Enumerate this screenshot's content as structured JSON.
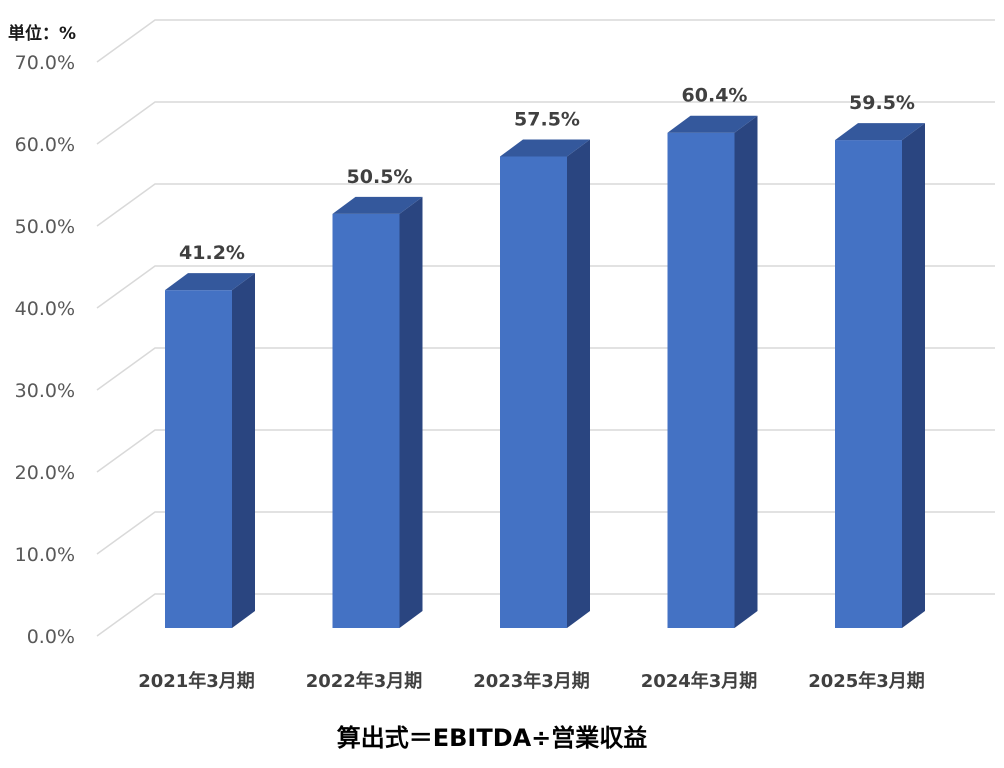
{
  "unit_label": "単位：%",
  "caption": "算出式＝EBITDA÷営業収益",
  "colors": {
    "bar_front": "#4472C4",
    "bar_side": "#2A4580",
    "bar_top": "#34589C",
    "grid": "#D9D9D9"
  },
  "chart_data": {
    "type": "bar",
    "style": "3d-column",
    "title": "",
    "xlabel": "",
    "ylabel": "",
    "categories": [
      "2021年3月期",
      "2022年3月期",
      "2023年3月期",
      "2024年3月期",
      "2025年3月期"
    ],
    "values": [
      41.2,
      50.5,
      57.5,
      60.4,
      59.5
    ],
    "data_labels": [
      "41.2%",
      "50.5%",
      "57.5%",
      "60.4%",
      "59.5%"
    ],
    "ylim": [
      0,
      70
    ],
    "yticks": [
      0,
      10,
      20,
      30,
      40,
      50,
      60,
      70
    ],
    "ytick_labels": [
      "0.0%",
      "10.0%",
      "20.0%",
      "30.0%",
      "40.0%",
      "50.0%",
      "60.0%",
      "70.0%"
    ],
    "grid": true,
    "legend": "none"
  }
}
